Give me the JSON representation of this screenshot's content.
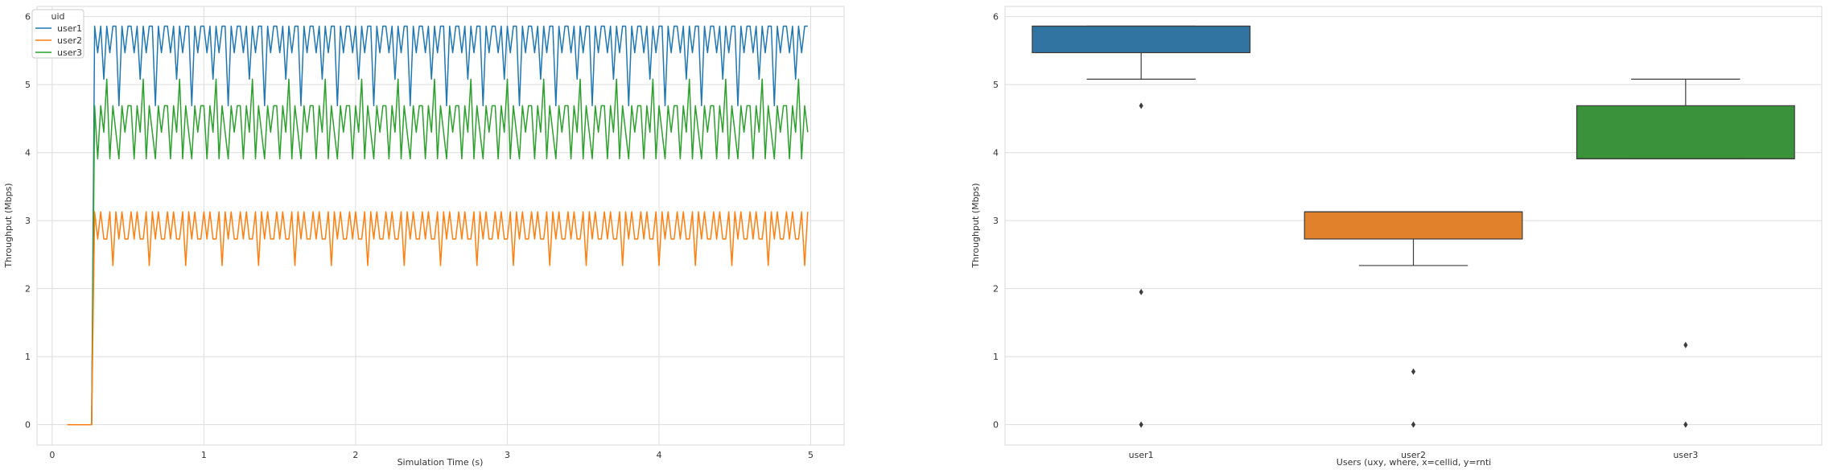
{
  "chart_data": [
    {
      "type": "line",
      "title": "",
      "xlabel": "Simulation Time (s)",
      "ylabel": "Throughput (Mbps)",
      "xlim": [
        -0.1,
        5.22
      ],
      "ylim": [
        -0.3,
        6.15
      ],
      "xticks": [
        "0",
        "1",
        "2",
        "3",
        "4",
        "5"
      ],
      "yticks": [
        "0",
        "1",
        "2",
        "3",
        "4",
        "5",
        "6"
      ],
      "grid": true,
      "legend": {
        "title": "uid",
        "placement": "top-left"
      },
      "x_start": 0.1,
      "x_end": 4.98,
      "x_step": 0.02,
      "rise_time": 0.28,
      "series": [
        {
          "name": "user1",
          "color": "#1f77b4",
          "pattern": [
            5.86,
            5.47,
            5.86,
            5.08,
            5.86,
            5.47,
            5.86,
            5.86,
            4.69,
            5.86,
            5.47,
            5.86
          ]
        },
        {
          "name": "user2",
          "color": "#ff7f0e",
          "pattern": [
            3.13,
            2.73,
            3.13,
            2.73,
            2.73,
            3.13,
            2.34,
            3.13,
            2.73,
            3.13,
            2.73,
            2.73
          ]
        },
        {
          "name": "user3",
          "color": "#2ca02c",
          "pattern": [
            4.69,
            3.91,
            4.69,
            4.3,
            5.08,
            3.91,
            4.69,
            4.3,
            3.91,
            4.69,
            4.3,
            4.69
          ]
        }
      ]
    },
    {
      "type": "box",
      "title": "",
      "xlabel": "Users (uxy, where, x=cellid, y=rnti",
      "ylabel": "Throughput (Mbps)",
      "ylim": [
        -0.3,
        6.15
      ],
      "yticks": [
        "0",
        "1",
        "2",
        "3",
        "4",
        "5",
        "6"
      ],
      "grid": true,
      "categories": [
        "user1",
        "user2",
        "user3"
      ],
      "boxes": [
        {
          "name": "user1",
          "color": "#3274a1",
          "q1": 5.47,
          "median": 5.86,
          "q3": 5.86,
          "whisker_low": 5.08,
          "whisker_high": 5.86,
          "outliers": [
            4.69,
            1.95,
            0.0
          ]
        },
        {
          "name": "user2",
          "color": "#e1812c",
          "q1": 2.73,
          "median": 3.13,
          "q3": 3.13,
          "whisker_low": 2.34,
          "whisker_high": 3.13,
          "outliers": [
            0.78,
            0.0
          ]
        },
        {
          "name": "user3",
          "color": "#3a923a",
          "q1": 3.91,
          "median": 3.91,
          "q3": 4.69,
          "whisker_low": 3.91,
          "whisker_high": 5.08,
          "outliers": [
            1.17,
            0.0
          ]
        }
      ]
    }
  ]
}
